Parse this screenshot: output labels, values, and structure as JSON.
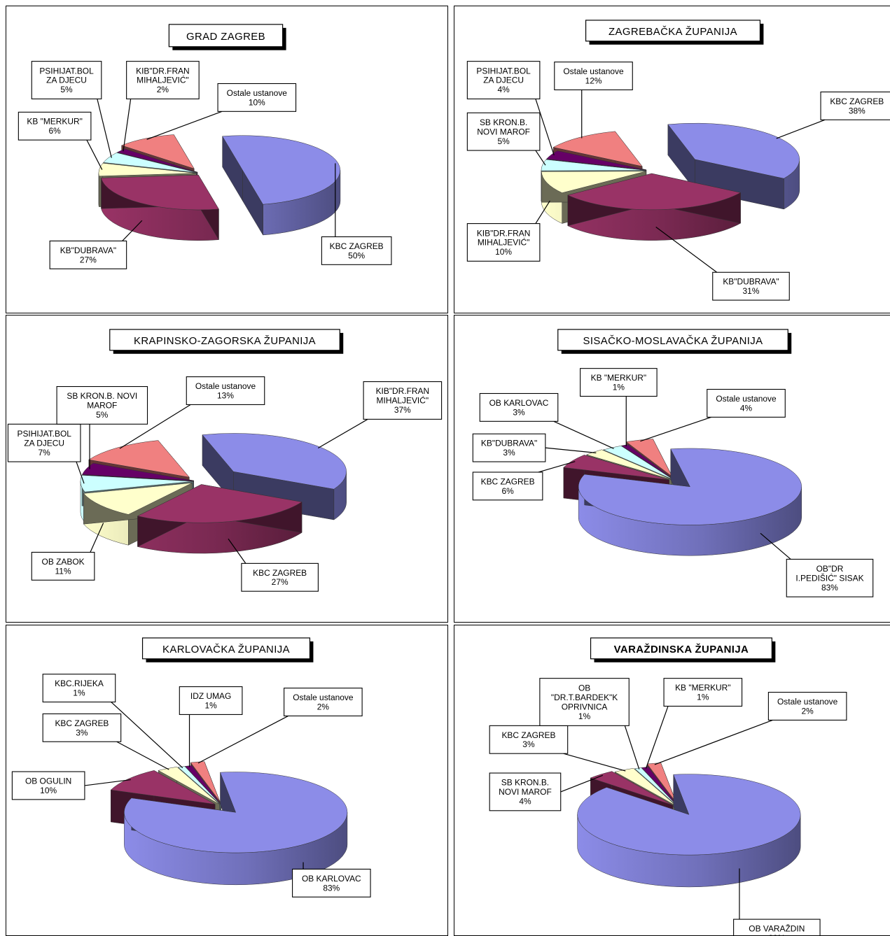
{
  "chart_data": [
    {
      "type": "pie",
      "title": "GRAD ZAGREB",
      "slices": [
        {
          "label": [
            "KBC ZAGREB"
          ],
          "pct": "50%",
          "value": 50,
          "color": "#8c8ce8"
        },
        {
          "label": [
            "KB\"DUBRAVA\""
          ],
          "pct": "27%",
          "value": 27,
          "color": "#993366"
        },
        {
          "label": [
            "KB \"MERKUR\""
          ],
          "pct": "6%",
          "value": 6,
          "color": "#ffffcc"
        },
        {
          "label": [
            "PSIHIJAT.BOL",
            "ZA DJECU"
          ],
          "pct": "5%",
          "value": 5,
          "color": "#ccffff"
        },
        {
          "label": [
            "KIB\"DR.FRAN",
            "MIHALJEVIĆ\""
          ],
          "pct": "2%",
          "value": 2,
          "color": "#660066"
        },
        {
          "label": [
            "Ostale ustanove"
          ],
          "pct": "10%",
          "value": 10,
          "color": "#f08080"
        }
      ]
    },
    {
      "type": "pie",
      "title": "ZAGREBAČKA ŽUPANIJA",
      "slices": [
        {
          "label": [
            "KBC ZAGREB"
          ],
          "pct": "38%",
          "value": 38,
          "color": "#8c8ce8"
        },
        {
          "label": [
            "KB\"DUBRAVA\""
          ],
          "pct": "31%",
          "value": 31,
          "color": "#993366"
        },
        {
          "label": [
            "KIB\"DR.FRAN",
            "MIHALJEVIĆ\""
          ],
          "pct": "10%",
          "value": 10,
          "color": "#ffffcc"
        },
        {
          "label": [
            "SB KRON.B.",
            "NOVI MAROF"
          ],
          "pct": "5%",
          "value": 5,
          "color": "#ccffff"
        },
        {
          "label": [
            "PSIHIJAT.BOL",
            "ZA DJECU"
          ],
          "pct": "4%",
          "value": 4,
          "color": "#660066"
        },
        {
          "label": [
            "Ostale ustanove"
          ],
          "pct": "12%",
          "value": 12,
          "color": "#f08080"
        }
      ]
    },
    {
      "type": "pie",
      "title": "KRAPINSKO-ZAGORSKA  ŽUPANIJA",
      "slices": [
        {
          "label": [
            "KIB\"DR.FRAN",
            "MIHALJEVIĆ\""
          ],
          "pct": "37%",
          "value": 37,
          "color": "#8c8ce8"
        },
        {
          "label": [
            "KBC ZAGREB"
          ],
          "pct": "27%",
          "value": 27,
          "color": "#993366"
        },
        {
          "label": [
            "OB ZABOK"
          ],
          "pct": "11%",
          "value": 11,
          "color": "#ffffcc"
        },
        {
          "label": [
            "PSIHIJAT.BOL",
            "ZA DJECU"
          ],
          "pct": "7%",
          "value": 7,
          "color": "#ccffff"
        },
        {
          "label": [
            "SB KRON.B. NOVI",
            "MAROF"
          ],
          "pct": "5%",
          "value": 5,
          "color": "#660066"
        },
        {
          "label": [
            "Ostale ustanove"
          ],
          "pct": "13%",
          "value": 13,
          "color": "#f08080"
        }
      ]
    },
    {
      "type": "pie",
      "title": "SISAČKO-MOSLAVAČKA  ŽUPANIJA",
      "slices": [
        {
          "label": [
            "OB\"DR",
            "I.PEDIŠIĆ\" SISAK"
          ],
          "pct": "83%",
          "value": 83,
          "color": "#8c8ce8"
        },
        {
          "label": [
            "KBC ZAGREB"
          ],
          "pct": "6%",
          "value": 6,
          "color": "#993366"
        },
        {
          "label": [
            "KB\"DUBRAVA\""
          ],
          "pct": "3%",
          "value": 3,
          "color": "#ffffcc"
        },
        {
          "label": [
            "OB KARLOVAC"
          ],
          "pct": "3%",
          "value": 3,
          "color": "#ccffff"
        },
        {
          "label": [
            "KB \"MERKUR\""
          ],
          "pct": "1%",
          "value": 1,
          "color": "#660066"
        },
        {
          "label": [
            "Ostale ustanove"
          ],
          "pct": "4%",
          "value": 4,
          "color": "#f08080"
        }
      ]
    },
    {
      "type": "pie",
      "title": "KARLOVAČKA  ŽUPANIJA",
      "slices": [
        {
          "label": [
            "OB KARLOVAC"
          ],
          "pct": "83%",
          "value": 83,
          "color": "#8c8ce8"
        },
        {
          "label": [
            "OB OGULIN"
          ],
          "pct": "10%",
          "value": 10,
          "color": "#993366"
        },
        {
          "label": [
            "KBC ZAGREB"
          ],
          "pct": "3%",
          "value": 3,
          "color": "#ffffcc"
        },
        {
          "label": [
            "KBC.RIJEKA"
          ],
          "pct": "1%",
          "value": 1,
          "color": "#ccffff"
        },
        {
          "label": [
            "IDZ UMAG"
          ],
          "pct": "1%",
          "value": 1,
          "color": "#660066"
        },
        {
          "label": [
            "Ostale ustanove"
          ],
          "pct": "2%",
          "value": 2,
          "color": "#f08080"
        }
      ]
    },
    {
      "type": "pie",
      "title": "VARAŽDINSKA  ŽUPANIJA",
      "slices": [
        {
          "label": [
            "OB VARAŽDIN"
          ],
          "pct": "89%",
          "value": 89,
          "color": "#8c8ce8"
        },
        {
          "label": [
            "SB KRON.B.",
            "NOVI MAROF"
          ],
          "pct": "4%",
          "value": 4,
          "color": "#993366"
        },
        {
          "label": [
            "KBC ZAGREB"
          ],
          "pct": "3%",
          "value": 3,
          "color": "#ffffcc"
        },
        {
          "label": [
            "OB",
            "\"DR.T.BARDEK\"K",
            "OPRIVNICA"
          ],
          "pct": "1%",
          "value": 1,
          "color": "#ccffff"
        },
        {
          "label": [
            "KB \"MERKUR\""
          ],
          "pct": "1%",
          "value": 1,
          "color": "#660066"
        },
        {
          "label": [
            "Ostale ustanove"
          ],
          "pct": "2%",
          "value": 2,
          "color": "#f08080"
        }
      ]
    }
  ]
}
